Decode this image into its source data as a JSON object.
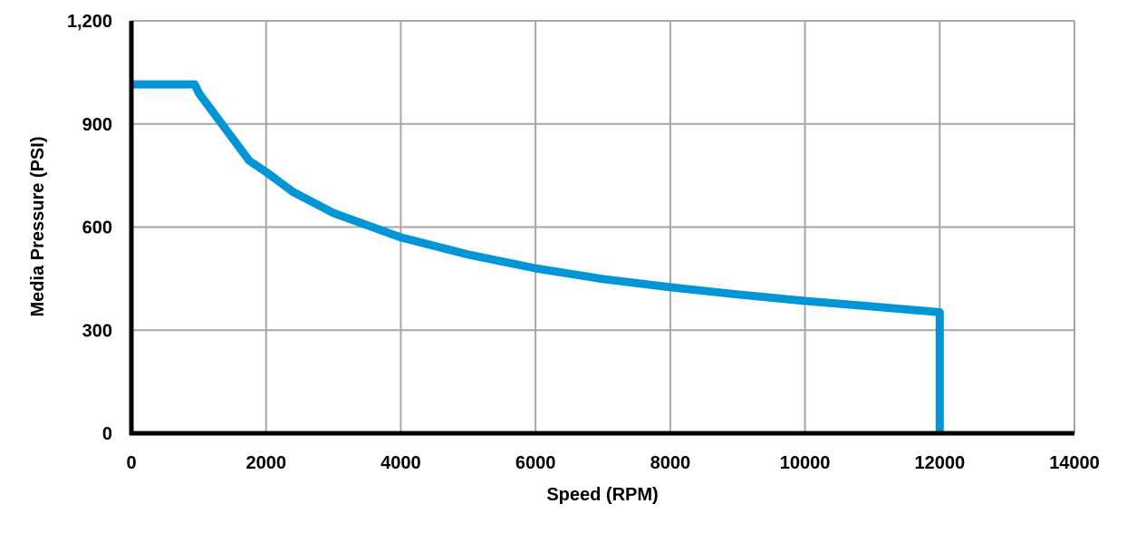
{
  "chart_data": {
    "type": "line",
    "title": "",
    "xlabel": "Speed (RPM)",
    "ylabel": "Media Pressure (PSI)",
    "xlim": [
      0,
      14000
    ],
    "ylim": [
      0,
      1200
    ],
    "xticks": [
      0,
      2000,
      4000,
      6000,
      8000,
      10000,
      12000,
      14000
    ],
    "xtick_labels": [
      "0",
      "2000",
      "4000",
      "6000",
      "8000",
      "10000",
      "12000",
      "14000"
    ],
    "yticks": [
      0,
      300,
      600,
      900,
      1200
    ],
    "ytick_labels": [
      "0",
      "300",
      "600",
      "900",
      "1,200"
    ],
    "grid": true,
    "legend": "none",
    "series": [
      {
        "color": "#0096D6",
        "x": [
          0,
          940,
          1000,
          1750,
          2000,
          2400,
          3000,
          4000,
          5000,
          6000,
          7000,
          8000,
          9000,
          10000,
          11000,
          12000,
          12000
        ],
        "y": [
          1015,
          1015,
          990,
          793,
          760,
          702,
          641,
          570,
          520,
          480,
          449,
          425,
          404,
          385,
          369,
          352,
          0
        ]
      }
    ]
  }
}
